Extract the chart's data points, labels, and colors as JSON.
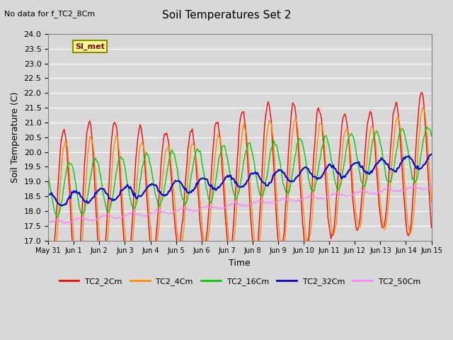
{
  "title": "Soil Temperatures Set 2",
  "subtitle": "No data for f_TC2_8Cm",
  "xlabel": "Time",
  "ylabel": "Soil Temperature (C)",
  "ylim": [
    17.0,
    24.0
  ],
  "yticks": [
    17.0,
    17.5,
    18.0,
    18.5,
    19.0,
    19.5,
    20.0,
    20.5,
    21.0,
    21.5,
    22.0,
    22.5,
    23.0,
    23.5,
    24.0
  ],
  "xtick_labels": [
    "May 31",
    "Jun 1",
    "Jun 2",
    "Jun 3",
    "Jun 4",
    "Jun 5",
    "Jun 6",
    "Jun 7",
    "Jun 8",
    "Jun 9",
    "Jun 10",
    "Jun 11",
    "Jun 12",
    "Jun 13",
    "Jun 14",
    "Jun 15"
  ],
  "n_days": 15,
  "colors": {
    "TC2_2Cm": "#ff0000",
    "TC2_4Cm": "#ff8c00",
    "TC2_16Cm": "#00cc00",
    "TC2_32Cm": "#0000cc",
    "TC2_50Cm": "#ff80ff"
  },
  "legend_label": "SI_met",
  "bg_color": "#d8d8d8"
}
